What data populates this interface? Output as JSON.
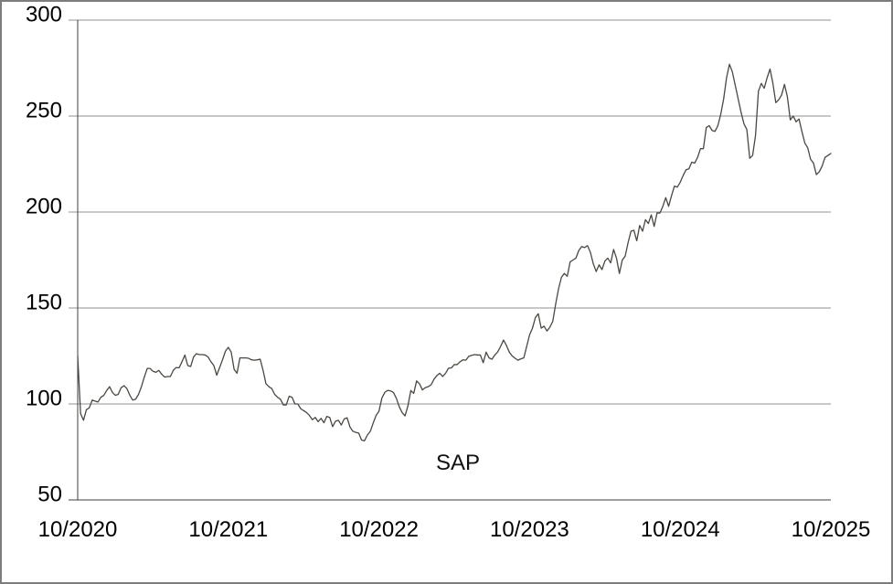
{
  "figure": {
    "background": "#ffffff",
    "border_color": "#7d7d7d",
    "line_color": "#4c4741",
    "grid_color": "#909090",
    "axis_color": "#3f3f3f",
    "text_color": "#000000"
  },
  "chart_data": {
    "type": "line",
    "title": "",
    "xlabel": "",
    "ylabel": "",
    "legend": "none",
    "grid": "horizontal",
    "ylim": [
      50,
      300
    ],
    "y_ticks": [
      50,
      100,
      150,
      200,
      250,
      300
    ],
    "y_tick_labels": [
      "50",
      "100",
      "150",
      "200",
      "250",
      "300"
    ],
    "x_tick_labels": [
      "10/2020",
      "10/2021",
      "10/2022",
      "10/2023",
      "10/2024",
      "10/2025"
    ],
    "x_unit": "weekly samples, Oct 2020 - Oct 2025",
    "annotation": {
      "text": "SAP"
    },
    "series": [
      {
        "name": "SAP",
        "values": [
          125,
          95,
          91.5,
          97,
          98,
          102,
          101.5,
          101,
          103.5,
          104.5,
          107,
          109,
          106,
          104.5,
          105,
          108.5,
          109.5,
          108,
          104.5,
          102,
          102.5,
          105,
          109,
          114,
          118.5,
          118.5,
          117,
          116.5,
          117.5,
          115.5,
          114,
          114.3,
          114.3,
          117.5,
          119,
          118.8,
          122,
          125.5,
          120,
          119.5,
          124.5,
          126.2,
          125.7,
          125.7,
          125.5,
          124.5,
          122,
          120,
          115,
          119,
          123,
          127.5,
          129.5,
          127,
          118,
          116,
          124,
          124,
          124,
          123.8,
          123,
          122.8,
          123,
          123.3,
          117.5,
          110.5,
          109,
          108,
          105,
          103.5,
          102.4,
          99.5,
          99.5,
          104,
          103.5,
          100,
          100,
          97.5,
          96.5,
          95.5,
          94,
          91.8,
          93,
          90.8,
          92.5,
          90.2,
          93.5,
          93,
          88.2,
          91,
          91.5,
          89,
          92.2,
          92.8,
          88,
          85.8,
          85.2,
          84.8,
          81.2,
          80.8,
          83.8,
          85.7,
          90,
          94,
          96.2,
          103,
          106,
          107.1,
          106.8,
          106,
          103,
          98.6,
          95.5,
          93.8,
          99,
          107,
          105.5,
          112,
          110.5,
          107.3,
          108.5,
          109,
          110,
          112.9,
          114.8,
          116,
          114.3,
          116,
          118.6,
          118.8,
          120.5,
          120.5,
          122,
          123,
          122.8,
          124.8,
          125.3,
          125.7,
          125.5,
          125.5,
          121.5,
          127,
          124,
          123.3,
          125.5,
          127.1,
          130,
          133.3,
          130.5,
          127,
          125,
          123.8,
          122.8,
          123.5,
          124,
          130,
          136,
          139.5,
          145,
          147,
          139.5,
          140.5,
          138,
          140,
          143,
          152,
          160,
          166,
          168,
          166.5,
          174,
          175,
          176,
          180,
          182,
          181.5,
          182.5,
          179,
          173,
          169,
          172.5,
          170,
          174.5,
          176,
          173.5,
          180.5,
          176,
          168,
          175,
          177,
          184,
          190,
          190.5,
          185,
          193,
          190,
          196,
          194,
          198.5,
          192.5,
          199.5,
          199.5,
          203,
          207.5,
          203,
          208.5,
          213.5,
          213,
          215.5,
          219,
          222,
          222.5,
          226,
          225.5,
          228.5,
          233,
          233,
          244,
          245,
          242.5,
          242,
          245,
          251,
          259,
          270,
          277,
          273,
          266,
          259,
          252,
          246,
          243,
          228,
          229.5,
          240,
          263,
          267,
          264.5,
          270,
          274.5,
          267,
          257,
          258.5,
          261,
          266.5,
          260,
          248,
          250,
          247,
          248.5,
          242,
          236,
          233.5,
          227.5,
          225.5,
          219.5,
          221,
          224,
          228.5,
          229.5,
          230.5
        ]
      }
    ]
  }
}
